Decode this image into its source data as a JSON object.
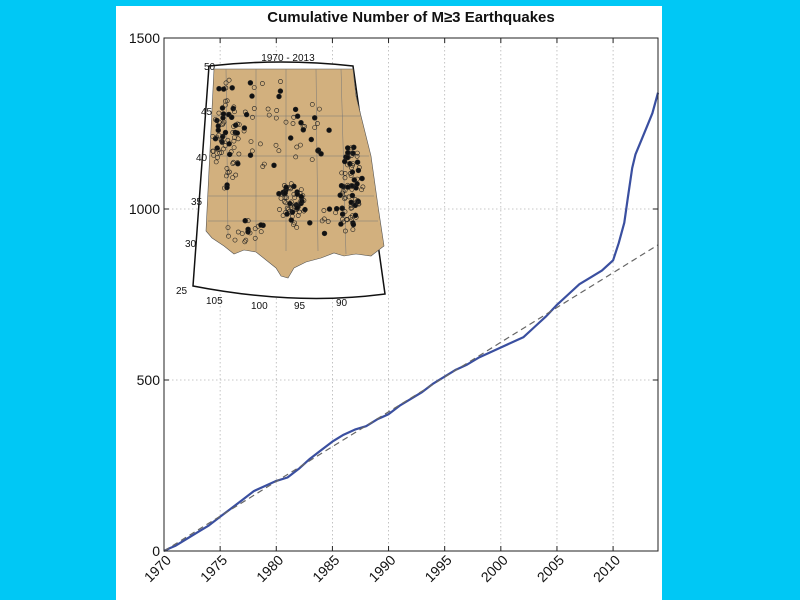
{
  "chart_data": {
    "type": "line",
    "title": "Cumulative Number of M≥3 Earthquakes",
    "xlabel": "",
    "ylabel": "",
    "xlim": [
      1970,
      2014
    ],
    "ylim": [
      0,
      1500
    ],
    "x_ticks": [
      1970,
      1975,
      1980,
      1985,
      1990,
      1995,
      2000,
      2005,
      2010
    ],
    "y_ticks": [
      0,
      500,
      1000,
      1500
    ],
    "grid": true,
    "series": [
      {
        "style": "solid",
        "color": "#3a4fa0",
        "x": [
          1970,
          1970.5,
          1971,
          1972,
          1973,
          1974,
          1975,
          1976,
          1977,
          1978,
          1979,
          1980,
          1981,
          1982,
          1983,
          1984,
          1985,
          1986,
          1987,
          1988,
          1989,
          1990,
          1991,
          1992,
          1993,
          1994,
          1995,
          1996,
          1997,
          1998,
          1999,
          2000,
          2001,
          2002,
          2003,
          2004,
          2005,
          2006,
          2007,
          2008,
          2009,
          2009.5,
          2010,
          2010.5,
          2011,
          2011.3,
          2011.7,
          2012,
          2012.5,
          2013,
          2013.5,
          2014
        ],
        "y": [
          0,
          8,
          15,
          35,
          55,
          75,
          100,
          125,
          150,
          175,
          190,
          205,
          215,
          240,
          270,
          295,
          320,
          340,
          355,
          365,
          385,
          400,
          425,
          445,
          465,
          490,
          510,
          530,
          545,
          565,
          580,
          595,
          610,
          625,
          655,
          685,
          720,
          750,
          780,
          800,
          820,
          835,
          850,
          900,
          960,
          1030,
          1120,
          1160,
          1200,
          1240,
          1280,
          1340
        ]
      },
      {
        "style": "dashed",
        "color": "#666666",
        "x": [
          1970,
          2014
        ],
        "y": [
          0,
          895
        ]
      }
    ],
    "inset": {
      "title": "1970 - 2013",
      "lat_labels": [
        "50",
        "45",
        "40",
        "35",
        "30",
        "25"
      ],
      "lon_labels": [
        "105",
        "100",
        "95",
        "90"
      ],
      "fill_color": "#d2b07e"
    }
  }
}
